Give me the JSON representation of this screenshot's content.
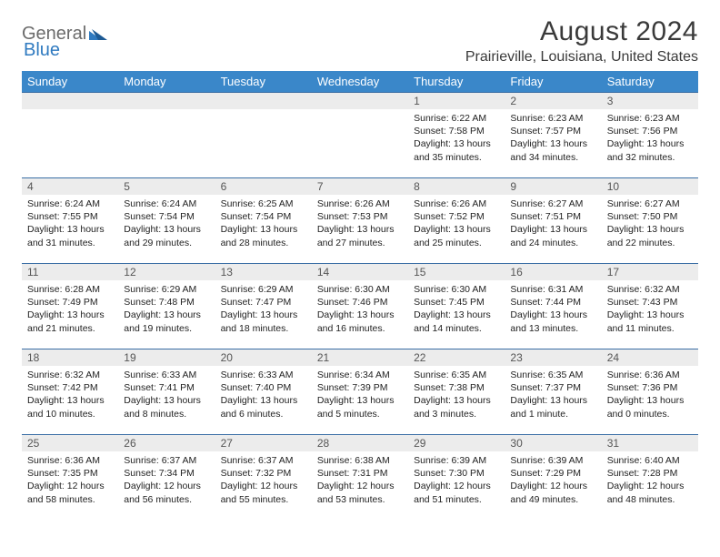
{
  "brand": {
    "word1": "General",
    "word2": "Blue"
  },
  "title": "August 2024",
  "location": "Prairieville, Louisiana, United States",
  "colors": {
    "header_bg": "#3a87c9",
    "header_text": "#ffffff",
    "daynum_bg": "#ececec",
    "cell_border": "#3a6ea5",
    "brand_gray": "#6b6b6b",
    "brand_blue": "#2f7ac0"
  },
  "day_headers": [
    "Sunday",
    "Monday",
    "Tuesday",
    "Wednesday",
    "Thursday",
    "Friday",
    "Saturday"
  ],
  "weeks": [
    [
      {
        "day": "",
        "sunrise": "",
        "sunset": "",
        "daylight": ""
      },
      {
        "day": "",
        "sunrise": "",
        "sunset": "",
        "daylight": ""
      },
      {
        "day": "",
        "sunrise": "",
        "sunset": "",
        "daylight": ""
      },
      {
        "day": "",
        "sunrise": "",
        "sunset": "",
        "daylight": ""
      },
      {
        "day": "1",
        "sunrise": "Sunrise: 6:22 AM",
        "sunset": "Sunset: 7:58 PM",
        "daylight": "Daylight: 13 hours and 35 minutes."
      },
      {
        "day": "2",
        "sunrise": "Sunrise: 6:23 AM",
        "sunset": "Sunset: 7:57 PM",
        "daylight": "Daylight: 13 hours and 34 minutes."
      },
      {
        "day": "3",
        "sunrise": "Sunrise: 6:23 AM",
        "sunset": "Sunset: 7:56 PM",
        "daylight": "Daylight: 13 hours and 32 minutes."
      }
    ],
    [
      {
        "day": "4",
        "sunrise": "Sunrise: 6:24 AM",
        "sunset": "Sunset: 7:55 PM",
        "daylight": "Daylight: 13 hours and 31 minutes."
      },
      {
        "day": "5",
        "sunrise": "Sunrise: 6:24 AM",
        "sunset": "Sunset: 7:54 PM",
        "daylight": "Daylight: 13 hours and 29 minutes."
      },
      {
        "day": "6",
        "sunrise": "Sunrise: 6:25 AM",
        "sunset": "Sunset: 7:54 PM",
        "daylight": "Daylight: 13 hours and 28 minutes."
      },
      {
        "day": "7",
        "sunrise": "Sunrise: 6:26 AM",
        "sunset": "Sunset: 7:53 PM",
        "daylight": "Daylight: 13 hours and 27 minutes."
      },
      {
        "day": "8",
        "sunrise": "Sunrise: 6:26 AM",
        "sunset": "Sunset: 7:52 PM",
        "daylight": "Daylight: 13 hours and 25 minutes."
      },
      {
        "day": "9",
        "sunrise": "Sunrise: 6:27 AM",
        "sunset": "Sunset: 7:51 PM",
        "daylight": "Daylight: 13 hours and 24 minutes."
      },
      {
        "day": "10",
        "sunrise": "Sunrise: 6:27 AM",
        "sunset": "Sunset: 7:50 PM",
        "daylight": "Daylight: 13 hours and 22 minutes."
      }
    ],
    [
      {
        "day": "11",
        "sunrise": "Sunrise: 6:28 AM",
        "sunset": "Sunset: 7:49 PM",
        "daylight": "Daylight: 13 hours and 21 minutes."
      },
      {
        "day": "12",
        "sunrise": "Sunrise: 6:29 AM",
        "sunset": "Sunset: 7:48 PM",
        "daylight": "Daylight: 13 hours and 19 minutes."
      },
      {
        "day": "13",
        "sunrise": "Sunrise: 6:29 AM",
        "sunset": "Sunset: 7:47 PM",
        "daylight": "Daylight: 13 hours and 18 minutes."
      },
      {
        "day": "14",
        "sunrise": "Sunrise: 6:30 AM",
        "sunset": "Sunset: 7:46 PM",
        "daylight": "Daylight: 13 hours and 16 minutes."
      },
      {
        "day": "15",
        "sunrise": "Sunrise: 6:30 AM",
        "sunset": "Sunset: 7:45 PM",
        "daylight": "Daylight: 13 hours and 14 minutes."
      },
      {
        "day": "16",
        "sunrise": "Sunrise: 6:31 AM",
        "sunset": "Sunset: 7:44 PM",
        "daylight": "Daylight: 13 hours and 13 minutes."
      },
      {
        "day": "17",
        "sunrise": "Sunrise: 6:32 AM",
        "sunset": "Sunset: 7:43 PM",
        "daylight": "Daylight: 13 hours and 11 minutes."
      }
    ],
    [
      {
        "day": "18",
        "sunrise": "Sunrise: 6:32 AM",
        "sunset": "Sunset: 7:42 PM",
        "daylight": "Daylight: 13 hours and 10 minutes."
      },
      {
        "day": "19",
        "sunrise": "Sunrise: 6:33 AM",
        "sunset": "Sunset: 7:41 PM",
        "daylight": "Daylight: 13 hours and 8 minutes."
      },
      {
        "day": "20",
        "sunrise": "Sunrise: 6:33 AM",
        "sunset": "Sunset: 7:40 PM",
        "daylight": "Daylight: 13 hours and 6 minutes."
      },
      {
        "day": "21",
        "sunrise": "Sunrise: 6:34 AM",
        "sunset": "Sunset: 7:39 PM",
        "daylight": "Daylight: 13 hours and 5 minutes."
      },
      {
        "day": "22",
        "sunrise": "Sunrise: 6:35 AM",
        "sunset": "Sunset: 7:38 PM",
        "daylight": "Daylight: 13 hours and 3 minutes."
      },
      {
        "day": "23",
        "sunrise": "Sunrise: 6:35 AM",
        "sunset": "Sunset: 7:37 PM",
        "daylight": "Daylight: 13 hours and 1 minute."
      },
      {
        "day": "24",
        "sunrise": "Sunrise: 6:36 AM",
        "sunset": "Sunset: 7:36 PM",
        "daylight": "Daylight: 13 hours and 0 minutes."
      }
    ],
    [
      {
        "day": "25",
        "sunrise": "Sunrise: 6:36 AM",
        "sunset": "Sunset: 7:35 PM",
        "daylight": "Daylight: 12 hours and 58 minutes."
      },
      {
        "day": "26",
        "sunrise": "Sunrise: 6:37 AM",
        "sunset": "Sunset: 7:34 PM",
        "daylight": "Daylight: 12 hours and 56 minutes."
      },
      {
        "day": "27",
        "sunrise": "Sunrise: 6:37 AM",
        "sunset": "Sunset: 7:32 PM",
        "daylight": "Daylight: 12 hours and 55 minutes."
      },
      {
        "day": "28",
        "sunrise": "Sunrise: 6:38 AM",
        "sunset": "Sunset: 7:31 PM",
        "daylight": "Daylight: 12 hours and 53 minutes."
      },
      {
        "day": "29",
        "sunrise": "Sunrise: 6:39 AM",
        "sunset": "Sunset: 7:30 PM",
        "daylight": "Daylight: 12 hours and 51 minutes."
      },
      {
        "day": "30",
        "sunrise": "Sunrise: 6:39 AM",
        "sunset": "Sunset: 7:29 PM",
        "daylight": "Daylight: 12 hours and 49 minutes."
      },
      {
        "day": "31",
        "sunrise": "Sunrise: 6:40 AM",
        "sunset": "Sunset: 7:28 PM",
        "daylight": "Daylight: 12 hours and 48 minutes."
      }
    ]
  ]
}
